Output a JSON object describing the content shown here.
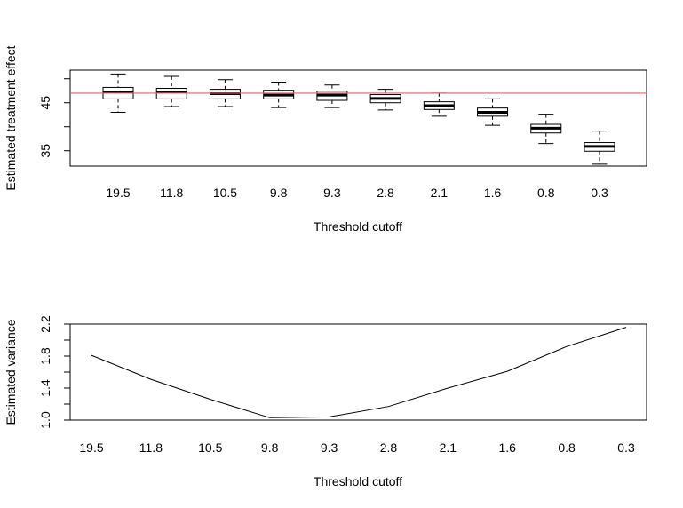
{
  "chart_data": [
    {
      "type": "boxplot",
      "title": "",
      "xlabel": "Threshold cutoff",
      "ylabel": "Estimated treatment effect",
      "categories": [
        "19.5",
        "11.8",
        "10.5",
        "9.8",
        "9.3",
        "2.8",
        "2.1",
        "1.6",
        "0.8",
        "0.3"
      ],
      "boxes": [
        {
          "min": 43.0,
          "q1": 45.8,
          "median": 47.2,
          "q3": 48.2,
          "max": 51.0
        },
        {
          "min": 44.2,
          "q1": 45.8,
          "median": 47.2,
          "q3": 48.0,
          "max": 50.5
        },
        {
          "min": 44.2,
          "q1": 45.8,
          "median": 46.9,
          "q3": 47.8,
          "max": 49.8
        },
        {
          "min": 44.0,
          "q1": 45.8,
          "median": 46.6,
          "q3": 47.6,
          "max": 49.3
        },
        {
          "min": 44.0,
          "q1": 45.5,
          "median": 46.6,
          "q3": 47.4,
          "max": 48.7
        },
        {
          "min": 43.5,
          "q1": 45.0,
          "median": 45.9,
          "q3": 46.7,
          "max": 47.8
        },
        {
          "min": 42.2,
          "q1": 43.6,
          "median": 44.4,
          "q3": 45.2,
          "max": 47.0
        },
        {
          "min": 40.3,
          "q1": 42.2,
          "median": 43.0,
          "q3": 43.9,
          "max": 45.8
        },
        {
          "min": 36.5,
          "q1": 38.7,
          "median": 39.7,
          "q3": 40.5,
          "max": 42.6
        },
        {
          "min": 32.2,
          "q1": 34.9,
          "median": 35.9,
          "q3": 36.7,
          "max": 39.1
        }
      ],
      "reference_line": {
        "value": 47.0,
        "color": "#e8616b"
      },
      "yticks": [
        "35",
        "45"
      ],
      "ylim": [
        31.8,
        51.8
      ]
    },
    {
      "type": "line",
      "title": "",
      "xlabel": "Threshold cutoff",
      "ylabel": "Estimated variance",
      "categories": [
        "19.5",
        "11.8",
        "10.5",
        "9.8",
        "9.3",
        "2.8",
        "2.1",
        "1.6",
        "0.8",
        "0.3"
      ],
      "values": [
        1.81,
        1.51,
        1.26,
        1.03,
        1.04,
        1.17,
        1.4,
        1.61,
        1.92,
        2.16
      ],
      "yticks": [
        "1.0",
        "1.4",
        "1.8",
        "2.2"
      ],
      "ylim": [
        1.0,
        2.2
      ]
    }
  ]
}
